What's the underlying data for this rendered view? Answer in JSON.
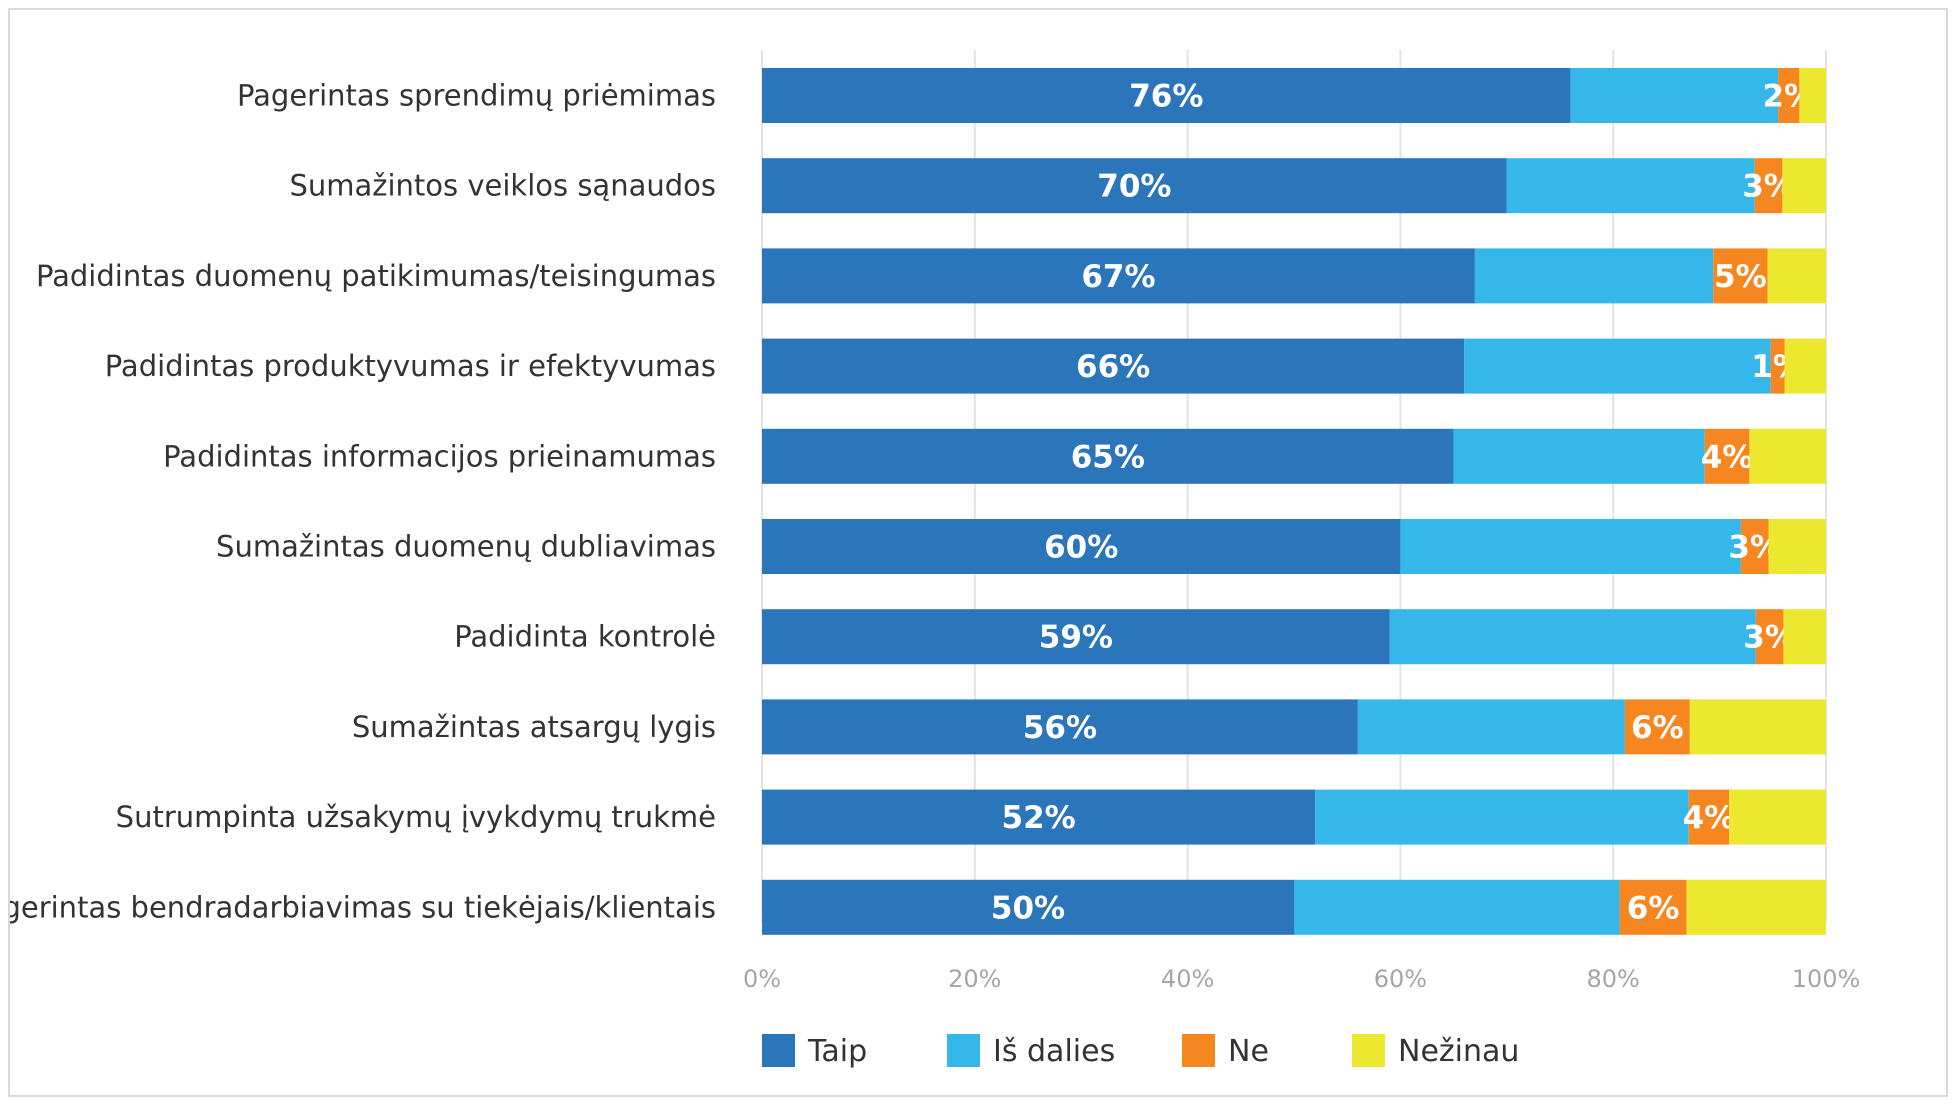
{
  "chart_data": {
    "type": "bar",
    "orientation": "horizontal",
    "stacked": true,
    "categories": [
      "Pagerintas sprendimų priėmimas",
      "Sumažintos veiklos sąnaudos",
      "Padidintas duomenų patikimumas/teisingumas",
      "Padidintas produktyvumas ir efektyvumas",
      "Padidintas informacijos prieinamumas",
      "Sumažintas duomenų dubliavimas",
      "Padidinta kontrolė",
      "Sumažintas atsargų lygis",
      "Sutrumpinta užsakymų įvykdymų trukmė",
      "Pagerintas bendradarbiavimas su tiekėjais/klientais"
    ],
    "series": [
      {
        "name": "Taip",
        "color": "#2b75bb",
        "values": [
          76,
          70,
          67,
          66,
          65,
          60,
          59,
          56,
          52,
          50
        ],
        "labels": [
          "76%",
          "70%",
          "67%",
          "66%",
          "65%",
          "60%",
          "59%",
          "56%",
          "52%",
          "50%"
        ]
      },
      {
        "name": "Iš dalies",
        "color": "#36b7e9",
        "values": [
          19.5,
          23.3,
          22.4,
          28.8,
          23.6,
          32.0,
          34.4,
          25.1,
          35.1,
          30.6
        ],
        "labels": []
      },
      {
        "name": "Ne",
        "color": "#f6861f",
        "values": [
          2,
          2.6,
          5.1,
          1.3,
          4.2,
          2.6,
          2.6,
          6.1,
          3.8,
          6.3
        ],
        "labels": [
          "2%",
          "3%",
          "5%",
          "1%",
          "4%",
          "3%",
          "3%",
          "6%",
          "4%",
          "6%"
        ]
      },
      {
        "name": "Nežinau",
        "color": "#ece72f",
        "values": [
          2.5,
          4.1,
          5.5,
          3.9,
          7.2,
          5.4,
          4.0,
          12.8,
          9.1,
          13.1
        ],
        "labels": []
      }
    ],
    "xlim": [
      0,
      100
    ],
    "xticks": [
      "0%",
      "20%",
      "40%",
      "60%",
      "80%",
      "100%"
    ],
    "grid": true,
    "legend": "bottom",
    "title": "",
    "xlabel": "",
    "ylabel": ""
  }
}
